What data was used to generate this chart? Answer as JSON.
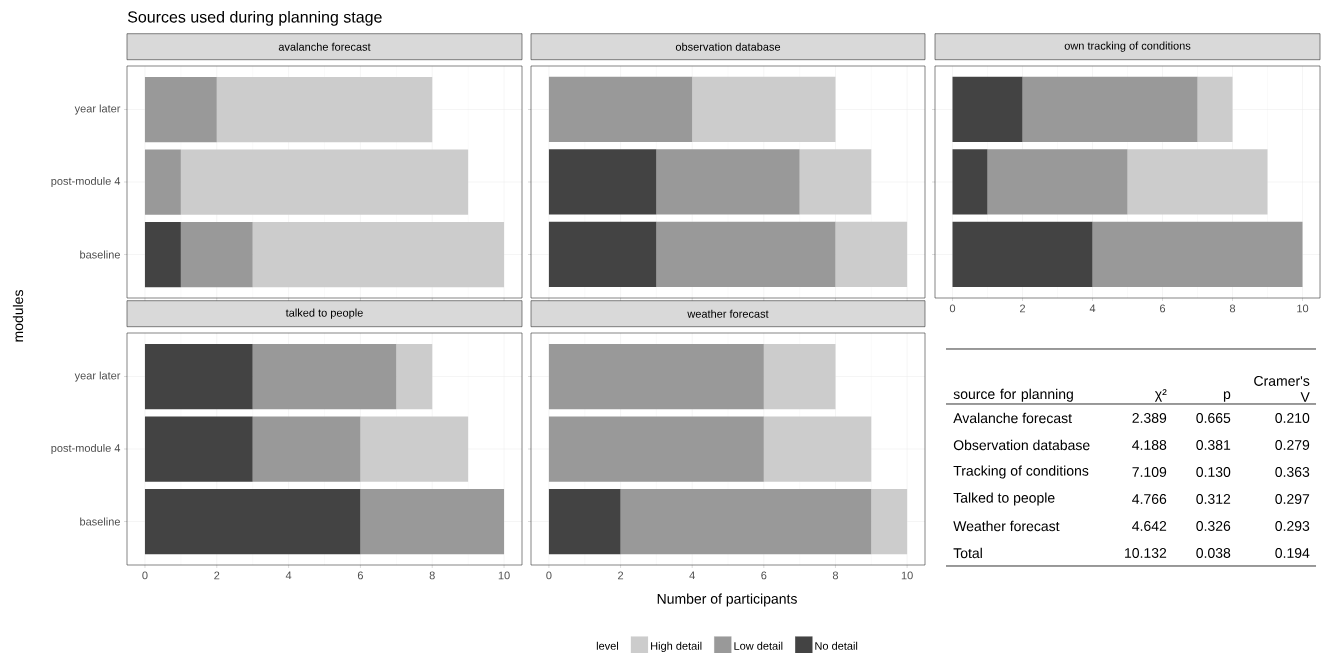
{
  "chart_data": [
    {
      "type": "bar",
      "orientation": "horizontal",
      "stacked": true,
      "title": "avalanche forecast",
      "ylabel": "modules",
      "annotations": [
        "Sources used during planning stage"
      ],
      "categories": [
        "year later",
        "post-module 4",
        "baseline"
      ],
      "xlim": [
        -0.5,
        10.5
      ],
      "xticks": [
        0,
        2,
        4,
        6,
        8,
        10
      ],
      "grid": true,
      "tick_labels": "y",
      "legend": "bottom",
      "legend_title": "level",
      "series": [
        {
          "name": "No detail",
          "color": "#434343",
          "values": [
            0,
            0,
            1
          ]
        },
        {
          "name": "Low detail",
          "color": "#999999",
          "values": [
            2,
            1,
            2
          ]
        },
        {
          "name": "High detail",
          "color": "#cccccc",
          "values": [
            6,
            8,
            7
          ]
        }
      ]
    },
    {
      "type": "bar",
      "orientation": "horizontal",
      "stacked": true,
      "title": "observation database",
      "categories": [
        null,
        null,
        null
      ],
      "xlim": [
        -0.5,
        10.5
      ],
      "xticks": [
        0,
        2,
        4,
        6,
        8,
        10
      ],
      "grid": true,
      "tick_labels": false,
      "series": [
        {
          "color": "#434343",
          "values": [
            0,
            3,
            3
          ]
        },
        {
          "color": "#999999",
          "values": [
            4,
            4,
            5
          ]
        },
        {
          "color": "#cccccc",
          "values": [
            4,
            2,
            2
          ]
        }
      ]
    },
    {
      "type": "bar",
      "orientation": "horizontal",
      "stacked": true,
      "title": "own tracking of conditions",
      "categories": [
        null,
        null,
        null
      ],
      "xlim": [
        -0.5,
        10.5
      ],
      "xticks": [
        0,
        2,
        4,
        6,
        8,
        10
      ],
      "grid": true,
      "tick_labels": "x",
      "series": [
        {
          "color": "#434343",
          "values": [
            2,
            1,
            4
          ]
        },
        {
          "color": "#999999",
          "values": [
            5,
            4,
            6
          ]
        },
        {
          "color": "#cccccc",
          "values": [
            1,
            4,
            0
          ]
        }
      ]
    },
    {
      "type": "bar",
      "orientation": "horizontal",
      "stacked": true,
      "title": "talked to people",
      "categories": [
        "year later",
        "post-module 4",
        "baseline"
      ],
      "xlim": [
        -0.5,
        10.5
      ],
      "xticks": [
        0,
        2,
        4,
        6,
        8,
        10
      ],
      "grid": true,
      "series": [
        {
          "color": "#434343",
          "values": [
            3,
            3,
            6
          ]
        },
        {
          "color": "#999999",
          "values": [
            4,
            3,
            4
          ]
        },
        {
          "color": "#cccccc",
          "values": [
            1,
            3,
            0
          ]
        }
      ]
    },
    {
      "type": "bar",
      "orientation": "horizontal",
      "stacked": true,
      "title": "weather forecast",
      "xlabel": "Number of participants",
      "categories": [
        null,
        null,
        null
      ],
      "xlim": [
        -0.5,
        10.5
      ],
      "xticks": [
        0,
        2,
        4,
        6,
        8,
        10
      ],
      "grid": true,
      "tick_labels": "x",
      "series": [
        {
          "color": "#434343",
          "values": [
            0,
            0,
            2
          ]
        },
        {
          "color": "#999999",
          "values": [
            6,
            6,
            7
          ]
        },
        {
          "color": "#cccccc",
          "values": [
            2,
            3,
            1
          ]
        }
      ]
    },
    {
      "type": "other",
      "annotations": [
        "source for planning",
        "χ²",
        "p",
        "Cramer's V",
        "Avalanche forecast",
        "2.389",
        "0.665",
        "0.210",
        "Observation database",
        "4.188",
        "0.381",
        "0.279",
        "Tracking of conditions",
        "7.109",
        "0.130",
        "0.363",
        "Talked to people",
        "4.766",
        "0.312",
        "0.297",
        "Weather forecast",
        "4.642",
        "0.326",
        "0.293",
        "Total",
        "10.132",
        "0.038",
        "0.194"
      ]
    }
  ]
}
